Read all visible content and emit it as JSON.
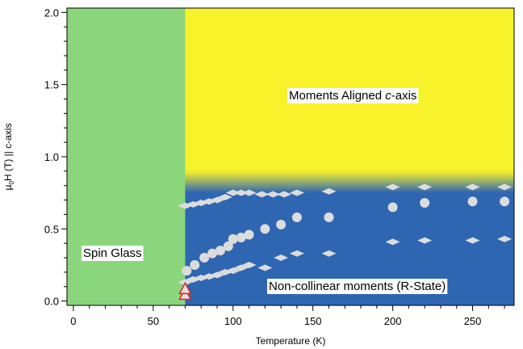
{
  "chart_data": {
    "type": "scatter",
    "title": "",
    "xlabel": "Temperature (K)",
    "ylabel": {
      "prefix": "μ",
      "sub": "0",
      "suffix": "H (T) || c-axis"
    },
    "xlim": [
      -4,
      276
    ],
    "ylim": [
      -0.03,
      2.03
    ],
    "xticks": [
      0,
      50,
      100,
      150,
      200,
      250
    ],
    "yticks": [
      "0.0",
      "0.5",
      "1.0",
      "1.5",
      "2.0"
    ],
    "grid": false,
    "colors": {
      "spin_glass": "#8bd67c",
      "aligned": "#f7f22a",
      "r_state": "#2e66b2",
      "marker": "#dcdcdc",
      "triangle_edge": "#cc2b2b",
      "triangle_fill": "#f4dada"
    },
    "boundary_temperature": 70,
    "regions": [
      {
        "name": "spin-glass",
        "label": "Spin Glass",
        "x_range": [
          -4,
          70
        ],
        "y_range": [
          -0.03,
          2.03
        ]
      },
      {
        "name": "aligned",
        "label_plain": "Moments Aligned ",
        "label_italic": "c",
        "label_tail": "-axis",
        "x_range": [
          70,
          276
        ],
        "y_range": [
          0.75,
          2.03
        ]
      },
      {
        "name": "r-state",
        "label": "Non-collinear moments (R-State)",
        "x_range": [
          70,
          276
        ],
        "y_range": [
          -0.03,
          0.75
        ]
      }
    ],
    "series": [
      {
        "marker": "diamond",
        "points": [
          [
            70,
            0.66
          ],
          [
            75,
            0.67
          ],
          [
            80,
            0.68
          ],
          [
            85,
            0.69
          ],
          [
            90,
            0.7
          ],
          [
            95,
            0.72
          ],
          [
            100,
            0.75
          ],
          [
            105,
            0.75
          ],
          [
            110,
            0.75
          ],
          [
            118,
            0.74
          ],
          [
            125,
            0.74
          ],
          [
            132,
            0.74
          ],
          [
            140,
            0.75
          ],
          [
            160,
            0.76
          ],
          [
            200,
            0.79
          ],
          [
            220,
            0.79
          ],
          [
            250,
            0.79
          ],
          [
            270,
            0.79
          ]
        ]
      },
      {
        "marker": "circle",
        "points": [
          [
            71,
            0.21
          ],
          [
            76,
            0.25
          ],
          [
            82,
            0.3
          ],
          [
            87,
            0.33
          ],
          [
            92,
            0.35
          ],
          [
            97,
            0.38
          ],
          [
            100,
            0.43
          ],
          [
            105,
            0.44
          ],
          [
            110,
            0.46
          ],
          [
            120,
            0.5
          ],
          [
            130,
            0.53
          ],
          [
            140,
            0.58
          ],
          [
            160,
            0.58
          ],
          [
            200,
            0.65
          ],
          [
            220,
            0.68
          ],
          [
            250,
            0.69
          ],
          [
            270,
            0.69
          ]
        ]
      },
      {
        "marker": "diamond",
        "points": [
          [
            70,
            0.13
          ],
          [
            75,
            0.15
          ],
          [
            80,
            0.16
          ],
          [
            85,
            0.17
          ],
          [
            90,
            0.18
          ],
          [
            95,
            0.2
          ],
          [
            100,
            0.21
          ],
          [
            105,
            0.23
          ],
          [
            110,
            0.25
          ],
          [
            120,
            0.23
          ],
          [
            130,
            0.3
          ],
          [
            140,
            0.33
          ],
          [
            160,
            0.33
          ],
          [
            200,
            0.41
          ],
          [
            220,
            0.42
          ],
          [
            250,
            0.42
          ],
          [
            270,
            0.43
          ]
        ]
      },
      {
        "marker": "triangle",
        "points": [
          [
            70,
            0.04
          ],
          [
            70,
            0.08
          ]
        ]
      }
    ]
  }
}
